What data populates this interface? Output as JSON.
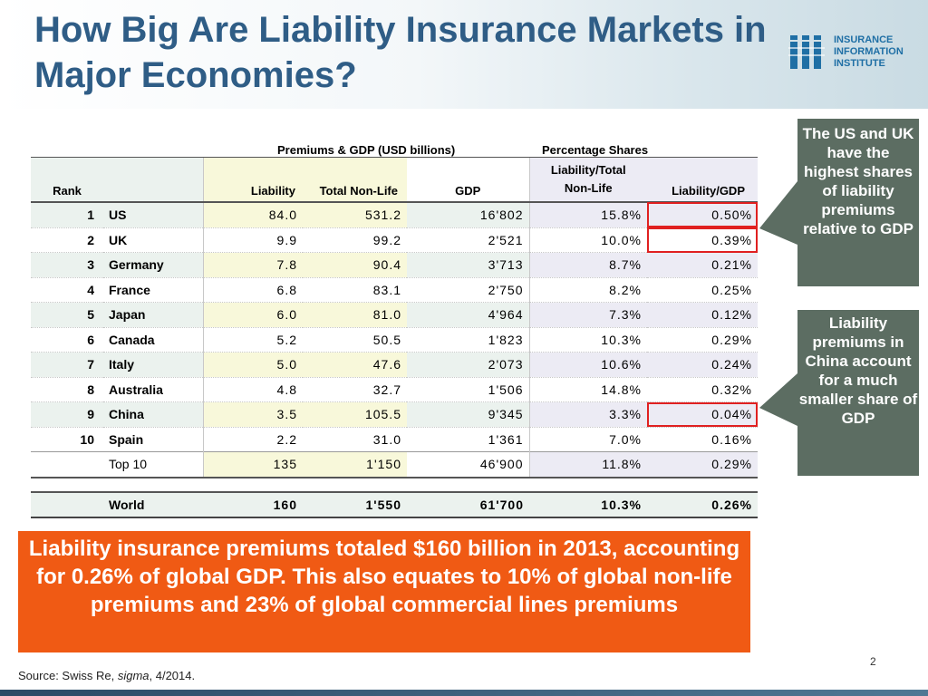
{
  "title": "How Big Are Liability Insurance Markets in Major Economies?",
  "logo": {
    "line1": "INSURANCE",
    "line2": "INFORMATION",
    "line3": "INSTITUTE",
    "icon": "iii-logo-icon",
    "color": "#1f6fa5"
  },
  "table": {
    "group_headers": {
      "premiums_gdp": "Premiums & GDP (USD billions)",
      "shares": "Percentage Shares"
    },
    "columns": {
      "rank": "Rank",
      "liability": "Liability",
      "total_nonlife": "Total Non-Life",
      "gdp": "GDP",
      "liab_nonlife_1": "Liability/Total",
      "liab_nonlife_2": "Non-Life",
      "liab_gdp": "Liability/GDP"
    },
    "rows": [
      {
        "rank": "1",
        "country": "US",
        "liability": "84.0",
        "nonlife": "531.2",
        "gdp": "16'802",
        "liab_nonlife": "15.8%",
        "liab_gdp": "0.50%"
      },
      {
        "rank": "2",
        "country": "UK",
        "liability": "9.9",
        "nonlife": "99.2",
        "gdp": "2'521",
        "liab_nonlife": "10.0%",
        "liab_gdp": "0.39%"
      },
      {
        "rank": "3",
        "country": "Germany",
        "liability": "7.8",
        "nonlife": "90.4",
        "gdp": "3'713",
        "liab_nonlife": "8.7%",
        "liab_gdp": "0.21%"
      },
      {
        "rank": "4",
        "country": "France",
        "liability": "6.8",
        "nonlife": "83.1",
        "gdp": "2'750",
        "liab_nonlife": "8.2%",
        "liab_gdp": "0.25%"
      },
      {
        "rank": "5",
        "country": "Japan",
        "liability": "6.0",
        "nonlife": "81.0",
        "gdp": "4'964",
        "liab_nonlife": "7.3%",
        "liab_gdp": "0.12%"
      },
      {
        "rank": "6",
        "country": "Canada",
        "liability": "5.2",
        "nonlife": "50.5",
        "gdp": "1'823",
        "liab_nonlife": "10.3%",
        "liab_gdp": "0.29%"
      },
      {
        "rank": "7",
        "country": "Italy",
        "liability": "5.0",
        "nonlife": "47.6",
        "gdp": "2'073",
        "liab_nonlife": "10.6%",
        "liab_gdp": "0.24%"
      },
      {
        "rank": "8",
        "country": "Australia",
        "liability": "4.8",
        "nonlife": "32.7",
        "gdp": "1'506",
        "liab_nonlife": "14.8%",
        "liab_gdp": "0.32%"
      },
      {
        "rank": "9",
        "country": "China",
        "liability": "3.5",
        "nonlife": "105.5",
        "gdp": "9'345",
        "liab_nonlife": "3.3%",
        "liab_gdp": "0.04%"
      },
      {
        "rank": "10",
        "country": "Spain",
        "liability": "2.2",
        "nonlife": "31.0",
        "gdp": "1'361",
        "liab_nonlife": "7.0%",
        "liab_gdp": "0.16%"
      }
    ],
    "top10": {
      "label": "Top 10",
      "liability": "135",
      "nonlife": "1'150",
      "gdp": "46'900",
      "liab_nonlife": "11.8%",
      "liab_gdp": "0.29%"
    },
    "world": {
      "label": "World",
      "liability": "160",
      "nonlife": "1'550",
      "gdp": "61'700",
      "liab_nonlife": "10.3%",
      "liab_gdp": "0.26%"
    },
    "highlight_color": "#e02020"
  },
  "callouts": {
    "first": "The US and UK have the highest shares of liability premiums relative to GDP",
    "second": "Liability premiums in China account for a much smaller share of GDP",
    "color": "#5c6d62"
  },
  "banner": {
    "text": "Liability insurance premiums totaled $160 billion in 2013, accounting for 0.26% of global GDP.  This also equates to 10% of global non-life premiums and 23% of global commercial lines premiums",
    "color": "#f05a14"
  },
  "source": {
    "prefix": "Source: Swiss Re, ",
    "italic": "sigma",
    "suffix": ", 4/2014."
  },
  "page_number": "2"
}
